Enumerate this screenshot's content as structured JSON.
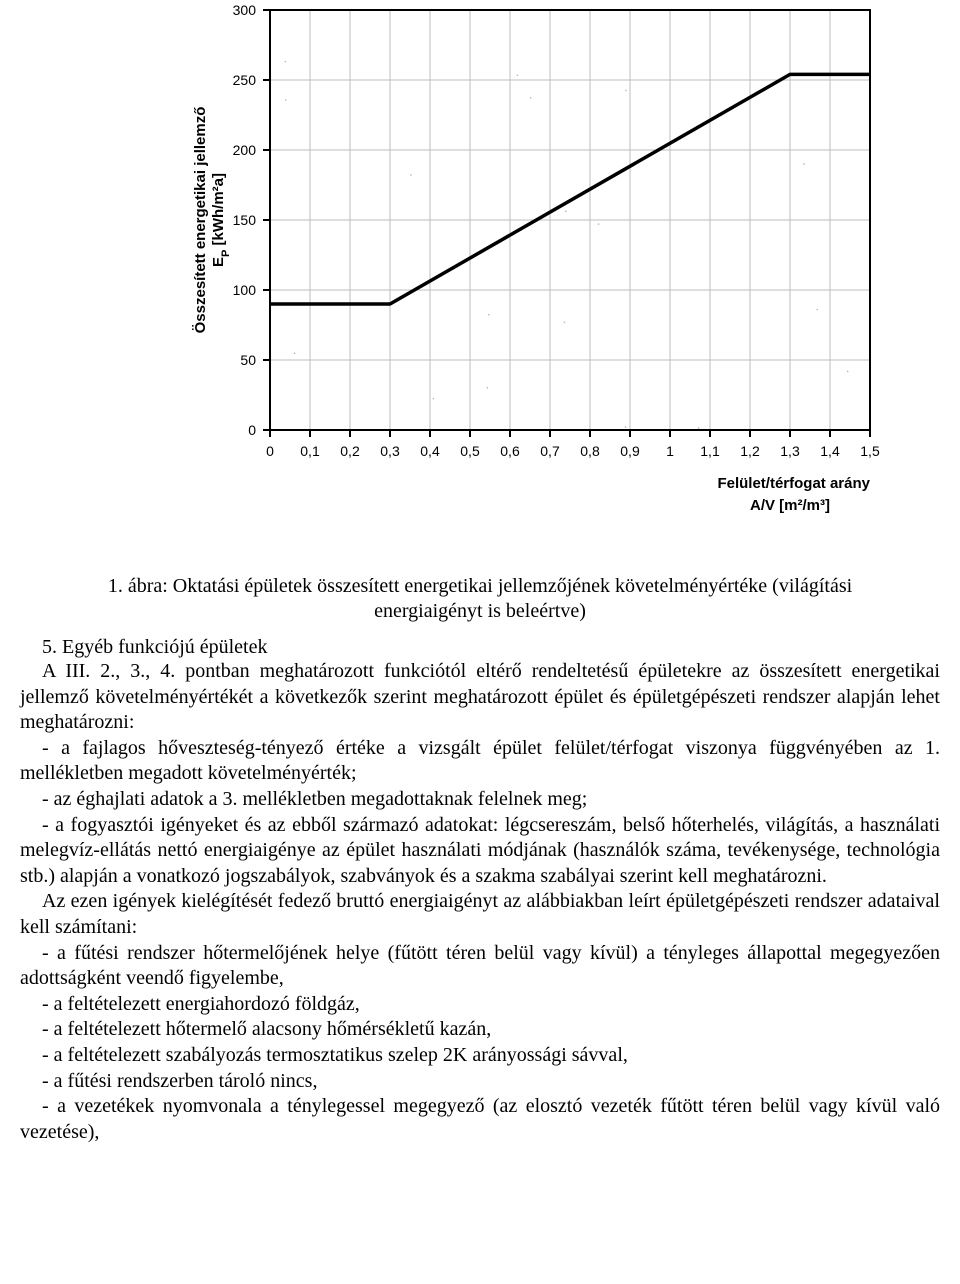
{
  "chart": {
    "type": "line",
    "y_axis_label_line1": "Összesített energetikai jellemző",
    "y_axis_label_line2": "E",
    "y_axis_label_sub": "P",
    "y_axis_label_unit": " [kWh/m²a]",
    "x_axis_label_line1": "Felület/térfogat arány",
    "x_axis_label_line2": "A/V [m²/m³]",
    "x_ticks": [
      "0",
      "0,1",
      "0,2",
      "0,3",
      "0,4",
      "0,5",
      "0,6",
      "0,7",
      "0,8",
      "0,9",
      "1",
      "1,1",
      "1,2",
      "1,3",
      "1,4",
      "1,5"
    ],
    "x_values": [
      0,
      0.1,
      0.2,
      0.3,
      0.4,
      0.5,
      0.6,
      0.7,
      0.8,
      0.9,
      1.0,
      1.1,
      1.2,
      1.3,
      1.4,
      1.5
    ],
    "y_ticks": [
      "0",
      "50",
      "100",
      "150",
      "200",
      "250",
      "300"
    ],
    "y_values": [
      0,
      50,
      100,
      150,
      200,
      250,
      300
    ],
    "xlim": [
      0,
      1.5
    ],
    "ylim": [
      0,
      300
    ],
    "line_points": [
      {
        "x": 0.0,
        "y": 90
      },
      {
        "x": 0.3,
        "y": 90
      },
      {
        "x": 1.3,
        "y": 254
      },
      {
        "x": 1.5,
        "y": 254
      }
    ],
    "line_color": "#000000",
    "line_width": 3.5,
    "axis_color": "#000000",
    "axis_width": 2,
    "grid_color": "#bdbdbd",
    "grid_width": 1,
    "tick_fontsize": 14,
    "axis_label_fontsize": 15,
    "noise_dot_count": 18,
    "noise_dot_color": "#6a6a6a",
    "plot_bg": "#ffffff"
  },
  "caption_line1": "1. ábra: Oktatási épületek összesített energetikai jellemzőjének követelményértéke (világítási",
  "caption_line2": "energiaigényt is beleértve)",
  "section_title": "5. Egyéb funkciójú épületek",
  "paragraphs": {
    "p0": "A III. 2., 3., 4. pontban meghatározott funkciótól eltérő rendeltetésű épületekre az összesített energetikai jellemző követelményértékét a következők szerint meghatározott épület és épületgépészeti rendszer alapján lehet meghatározni:",
    "b1": "- a fajlagos hőveszteség-tényező értéke a vizsgált épület felület/térfogat viszonya függvényében az 1. mellékletben megadott követelményérték;",
    "b2": "- az éghajlati adatok a 3. mellékletben megadottaknak felelnek meg;",
    "b3": "- a fogyasztói igényeket és az ebből származó adatokat: légcsereszám, belső hőterhelés, világítás, a használati melegvíz-ellátás nettó energiaigénye az épület használati módjának (használók száma, tevékenysége, technológia stb.) alapján a vonatkozó jogszabályok, szabványok és a szakma szabályai szerint kell meghatározni.",
    "p1": "Az ezen igények kielégítését fedező bruttó energiaigényt az alábbiakban leírt épületgépészeti rendszer adataival kell számítani:",
    "c1": "- a fűtési rendszer hőtermelőjének helye (fűtött téren belül vagy kívül) a tényleges állapottal megegyezően adottságként veendő figyelembe,",
    "c2": "- a feltételezett energiahordozó földgáz,",
    "c3": "- a feltételezett hőtermelő alacsony hőmérsékletű kazán,",
    "c4": "- a feltételezett szabályozás termosztatikus szelep 2K arányossági sávval,",
    "c5": "- a fűtési rendszerben tároló nincs,",
    "c6": "- a vezetékek nyomvonala a ténylegessel megegyező (az elosztó vezeték fűtött téren belül vagy kívül való vezetése),"
  }
}
